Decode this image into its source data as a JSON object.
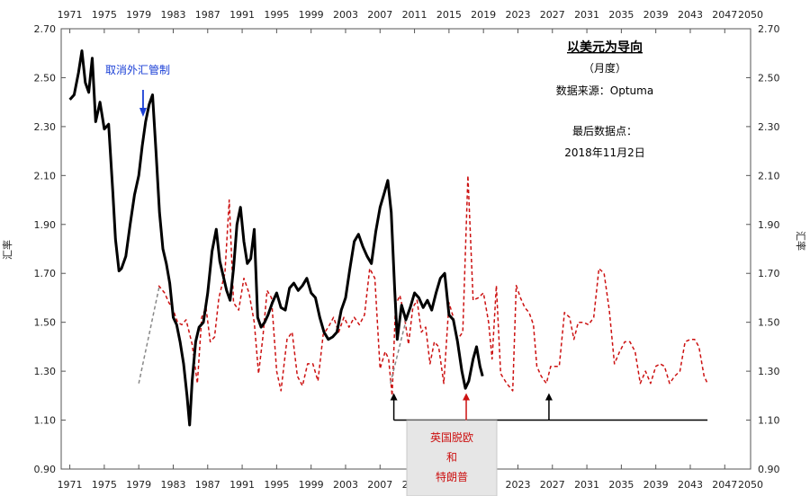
{
  "chart_data": {
    "type": "line",
    "title": "以美元为导向",
    "subtitle": "（月度）",
    "source": "数据来源：Optuma",
    "last_point_label": "最后数据点：",
    "last_point_date": "2018年11月2日",
    "ylabel_left": "汇率",
    "ylabel_right": "汇率",
    "ylim": [
      0.9,
      2.7
    ],
    "xlim": [
      1970,
      2050
    ],
    "y_ticks": [
      "0.90",
      "1.10",
      "1.30",
      "1.50",
      "1.70",
      "1.90",
      "2.10",
      "2.30",
      "2.50",
      "2.70"
    ],
    "x_ticks": [
      "1971",
      "1975",
      "1979",
      "1983",
      "1987",
      "1991",
      "1995",
      "1999",
      "2003",
      "2007",
      "2011",
      "2015",
      "2019",
      "2023",
      "2027",
      "2031",
      "2035",
      "2039",
      "2043",
      "2047",
      "2050"
    ],
    "grid": false,
    "annotations": {
      "capital_controls": "取消外汇管制",
      "event_box": [
        "英国脱欧",
        "和",
        "特朗普"
      ]
    },
    "colors": {
      "gbpusd": "#000000",
      "projection": "#cc1111",
      "grey_dash": "#888888",
      "blue_arrow": "#1a3fd6",
      "red_arrow": "#cc1111",
      "box_fill": "#e6e6e6"
    },
    "series": [
      {
        "x": [
          1971.0,
          1971.5,
          1972.0,
          1972.4,
          1972.8,
          1973.2,
          1973.6,
          1974.0,
          1974.5,
          1975.0,
          1975.5,
          1976.0,
          1976.3,
          1976.7,
          1977.0,
          1977.5,
          1978.0,
          1978.5,
          1979.0,
          1979.4,
          1979.8,
          1980.2,
          1980.6,
          1981.0,
          1981.4,
          1981.8,
          1982.2,
          1982.6,
          1983.0,
          1983.4,
          1983.8,
          1984.2,
          1984.6,
          1984.9,
          1985.2,
          1985.6,
          1986.0,
          1986.5,
          1987.0,
          1987.5,
          1988.0,
          1988.4,
          1988.8,
          1989.2,
          1989.6,
          1990.0,
          1990.4,
          1990.8,
          1991.2,
          1991.6,
          1992.0,
          1992.4,
          1992.8,
          1993.2,
          1993.6,
          1994.0,
          1994.5,
          1995.0,
          1995.5,
          1996.0,
          1996.5,
          1997.0,
          1997.5,
          1998.0,
          1998.5,
          1999.0,
          1999.5,
          2000.0,
          2000.5,
          2001.0,
          2001.5,
          2002.0,
          2002.5,
          2003.0,
          2003.5,
          2004.0,
          2004.5,
          2005.0,
          2005.5,
          2006.0,
          2006.5,
          2007.0,
          2007.5,
          2007.9,
          2008.3,
          2008.7,
          2009.0,
          2009.5,
          2010.0,
          2010.5,
          2011.0,
          2011.5,
          2012.0,
          2012.5,
          2013.0,
          2013.5,
          2014.0,
          2014.5,
          2015.0,
          2015.5,
          2016.0,
          2016.5,
          2016.9,
          2017.3,
          2017.8,
          2018.2,
          2018.6,
          2018.9
        ],
        "y": [
          2.41,
          2.43,
          2.52,
          2.61,
          2.48,
          2.44,
          2.58,
          2.32,
          2.4,
          2.29,
          2.31,
          2.03,
          1.84,
          1.71,
          1.72,
          1.77,
          1.9,
          2.02,
          2.1,
          2.22,
          2.32,
          2.39,
          2.43,
          2.2,
          1.95,
          1.8,
          1.74,
          1.66,
          1.52,
          1.49,
          1.42,
          1.33,
          1.2,
          1.08,
          1.26,
          1.42,
          1.48,
          1.5,
          1.62,
          1.79,
          1.88,
          1.75,
          1.69,
          1.63,
          1.59,
          1.72,
          1.9,
          1.97,
          1.83,
          1.74,
          1.76,
          1.88,
          1.52,
          1.48,
          1.5,
          1.53,
          1.58,
          1.62,
          1.56,
          1.55,
          1.64,
          1.66,
          1.63,
          1.65,
          1.68,
          1.62,
          1.6,
          1.52,
          1.46,
          1.43,
          1.44,
          1.46,
          1.55,
          1.6,
          1.72,
          1.83,
          1.86,
          1.81,
          1.77,
          1.74,
          1.87,
          1.97,
          2.03,
          2.08,
          1.95,
          1.63,
          1.43,
          1.57,
          1.51,
          1.56,
          1.62,
          1.6,
          1.56,
          1.59,
          1.55,
          1.62,
          1.68,
          1.7,
          1.53,
          1.51,
          1.42,
          1.3,
          1.23,
          1.26,
          1.35,
          1.4,
          1.32,
          1.28
        ]
      },
      {
        "x": [
          1981.3,
          1982.0,
          1982.5,
          1983.0,
          1983.5,
          1984.0,
          1984.5,
          1985.2,
          1985.8,
          1986.3,
          1986.8,
          1987.3,
          1987.8,
          1988.3,
          1989.0,
          1989.5,
          1990.0,
          1990.6,
          1991.2,
          1991.8,
          1992.4,
          1992.9,
          1993.4,
          1993.9,
          1994.4,
          1995.0,
          1995.5,
          1996.2,
          1996.8,
          1997.4,
          1998.0,
          1998.6,
          1999.2,
          1999.8,
          2000.4,
          2001.0,
          2001.6,
          2002.2,
          2002.8,
          2003.4,
          2004.0,
          2004.6,
          2005.2,
          2005.8,
          2006.4,
          2007.0,
          2007.6,
          2008.0,
          2008.4,
          2008.8,
          2009.3,
          2009.8,
          2010.3,
          2010.8,
          2011.3,
          2011.8,
          2012.3,
          2012.8,
          2013.3,
          2013.8,
          2014.4,
          2015.0,
          2015.5,
          2016.0,
          2016.6,
          2017.2,
          2017.8,
          2018.4,
          2019.0,
          2019.6,
          2020.0,
          2020.5,
          2021.0,
          2021.7,
          2022.4,
          2022.8,
          2023.3,
          2023.8,
          2024.3,
          2024.8,
          2025.2,
          2025.7,
          2026.3,
          2026.8,
          2027.3,
          2027.8,
          2028.4,
          2029.0,
          2029.5,
          2030.0,
          2030.6,
          2031.2,
          2031.8,
          2032.4,
          2033.0,
          2033.6,
          2034.2,
          2034.8,
          2035.4,
          2036.0,
          2036.6,
          2037.2,
          2037.8,
          2038.4,
          2039.0,
          2039.5,
          2040.0,
          2040.6,
          2041.2,
          2041.8,
          2042.4,
          2043.0,
          2043.5,
          2044.0,
          2044.6,
          2045.0
        ],
        "y": [
          1.65,
          1.62,
          1.58,
          1.55,
          1.5,
          1.49,
          1.51,
          1.41,
          1.25,
          1.52,
          1.56,
          1.42,
          1.44,
          1.6,
          1.7,
          2.0,
          1.58,
          1.55,
          1.68,
          1.62,
          1.5,
          1.29,
          1.44,
          1.63,
          1.6,
          1.3,
          1.22,
          1.43,
          1.46,
          1.28,
          1.24,
          1.33,
          1.33,
          1.26,
          1.45,
          1.48,
          1.52,
          1.46,
          1.52,
          1.48,
          1.52,
          1.49,
          1.53,
          1.72,
          1.68,
          1.31,
          1.38,
          1.35,
          1.2,
          1.57,
          1.61,
          1.53,
          1.41,
          1.56,
          1.59,
          1.46,
          1.48,
          1.33,
          1.42,
          1.4,
          1.25,
          1.58,
          1.52,
          1.43,
          1.46,
          2.1,
          1.59,
          1.6,
          1.62,
          1.5,
          1.35,
          1.65,
          1.29,
          1.25,
          1.22,
          1.65,
          1.6,
          1.56,
          1.54,
          1.49,
          1.32,
          1.28,
          1.25,
          1.32,
          1.32,
          1.32,
          1.54,
          1.52,
          1.43,
          1.5,
          1.5,
          1.49,
          1.52,
          1.72,
          1.7,
          1.55,
          1.33,
          1.38,
          1.42,
          1.42,
          1.38,
          1.25,
          1.3,
          1.25,
          1.32,
          1.33,
          1.32,
          1.25,
          1.28,
          1.3,
          1.42,
          1.43,
          1.43,
          1.4,
          1.28,
          1.25
        ]
      },
      {
        "x": [
          1979.0,
          1979.6,
          1980.2,
          1980.8,
          1981.4
        ],
        "y": [
          1.25,
          1.35,
          1.45,
          1.55,
          1.65
        ]
      },
      {
        "x": [
          2008.2,
          2008.9,
          2009.6,
          2010.3
        ],
        "y": [
          1.25,
          1.35,
          1.45,
          1.55
        ]
      }
    ],
    "event_line": {
      "y": 1.1,
      "x_start": 2008.6,
      "x_end": 2045.0,
      "arrows_x": [
        2008.6,
        2017.0,
        2026.6
      ]
    },
    "capital_controls_x": 1979.5
  }
}
